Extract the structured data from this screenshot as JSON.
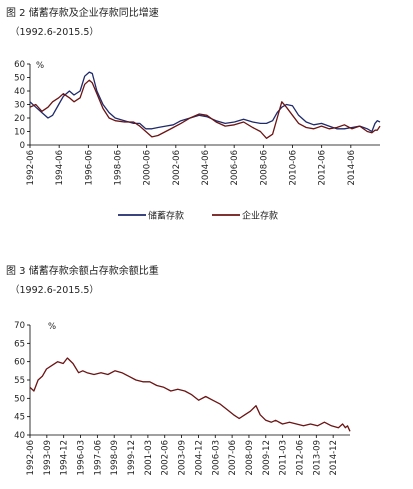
{
  "figure2": {
    "caption": "图 2 储蓄存款及企业存款同比增速",
    "subcaption": "（1992.6-2015.5）",
    "chart_data": {
      "type": "line",
      "ylabel": "%",
      "ylim": [
        0,
        60
      ],
      "yticks": [
        0,
        10,
        20,
        30,
        40,
        50,
        60
      ],
      "x_range": [
        1992.42,
        2015.33
      ],
      "xtick_labels": [
        "1992-06",
        "1994-06",
        "1996-06",
        "1998-06",
        "2000-06",
        "2002-06",
        "2004-06",
        "2006-06",
        "2008-06",
        "2010-06",
        "2012-06",
        "2014-06"
      ],
      "legend_position": "bottom",
      "series": [
        {
          "name": "储蓄存款",
          "color": "#1f2a6b",
          "x": [
            1992.42,
            1992.8,
            1993.2,
            1993.6,
            1993.9,
            1994.3,
            1994.6,
            1995.0,
            1995.3,
            1995.7,
            1996.0,
            1996.3,
            1996.5,
            1996.8,
            1997.2,
            1997.6,
            1998.0,
            1998.6,
            1999.2,
            1999.6,
            2000.0,
            2000.4,
            2000.8,
            2001.3,
            2001.8,
            2002.3,
            2002.9,
            2003.5,
            2004.0,
            2004.6,
            2005.2,
            2005.8,
            2006.4,
            2007.0,
            2007.5,
            2007.9,
            2008.3,
            2008.6,
            2008.9,
            2009.2,
            2009.6,
            2010.0,
            2010.5,
            2011.0,
            2011.5,
            2012.0,
            2012.5,
            2013.0,
            2013.5,
            2014.0,
            2014.5,
            2014.8,
            2015.0,
            2015.15,
            2015.33
          ],
          "y": [
            32,
            28,
            24,
            20,
            22,
            30,
            36,
            40,
            37,
            40,
            51,
            54,
            53,
            40,
            30,
            24,
            20,
            18,
            16,
            16,
            12,
            12,
            13,
            14,
            15,
            18,
            20,
            22,
            21,
            18,
            16,
            17,
            19,
            17,
            16,
            16,
            18,
            24,
            28,
            30,
            29,
            22,
            17,
            15,
            16,
            14,
            12,
            12,
            13,
            14,
            12,
            10,
            16,
            18,
            17
          ]
        },
        {
          "name": "企业存款",
          "color": "#6b1414",
          "x": [
            1992.42,
            1992.8,
            1993.2,
            1993.6,
            1993.9,
            1994.3,
            1994.6,
            1995.0,
            1995.3,
            1995.7,
            1996.0,
            1996.3,
            1996.5,
            1996.8,
            1997.2,
            1997.6,
            1998.0,
            1998.6,
            1999.2,
            1999.6,
            2000.0,
            2000.4,
            2000.8,
            2001.3,
            2001.8,
            2002.3,
            2002.9,
            2003.5,
            2004.0,
            2004.6,
            2005.2,
            2005.8,
            2006.4,
            2007.0,
            2007.5,
            2007.9,
            2008.3,
            2008.6,
            2008.9,
            2009.2,
            2009.6,
            2010.0,
            2010.5,
            2011.0,
            2011.5,
            2012.0,
            2012.5,
            2013.0,
            2013.5,
            2014.0,
            2014.5,
            2014.8,
            2015.0,
            2015.15,
            2015.33
          ],
          "y": [
            28,
            30,
            25,
            28,
            32,
            35,
            38,
            35,
            32,
            35,
            45,
            48,
            46,
            38,
            27,
            20,
            18,
            17,
            17,
            14,
            10,
            6,
            7,
            10,
            13,
            16,
            20,
            23,
            22,
            17,
            14,
            15,
            17,
            13,
            10,
            5,
            8,
            20,
            32,
            28,
            22,
            16,
            13,
            12,
            14,
            12,
            13,
            15,
            12,
            14,
            10,
            9,
            11,
            11,
            14
          ]
        }
      ]
    }
  },
  "figure3": {
    "caption": "图 3 储蓄存款余额占存款余额比重",
    "subcaption": "（1992.6-2015.5）",
    "chart_data": {
      "type": "line",
      "ylabel": "%",
      "ylim": [
        40,
        70
      ],
      "yticks": [
        40,
        45,
        50,
        55,
        60,
        65,
        70
      ],
      "x_range": [
        1992.42,
        2015.33
      ],
      "xtick_labels": [
        "1992-06",
        "1993-09",
        "1994-12",
        "1996-03",
        "1997-06",
        "1998-09",
        "1999-12",
        "2001-03",
        "2002-06",
        "2003-09",
        "2004-12",
        "2006-03",
        "2007-06",
        "2008-09",
        "2009-12",
        "2011-03",
        "2012-06",
        "2013-09",
        "2014-12"
      ],
      "series": [
        {
          "name": "",
          "color": "#6b1414",
          "x": [
            1992.42,
            1992.7,
            1993.0,
            1993.3,
            1993.6,
            1994.0,
            1994.4,
            1994.8,
            1995.1,
            1995.5,
            1995.9,
            1996.2,
            1996.5,
            1997.0,
            1997.5,
            1998.0,
            1998.5,
            1999.0,
            1999.5,
            2000.0,
            2000.5,
            2001.0,
            2001.5,
            2002.0,
            2002.5,
            2003.0,
            2003.5,
            2004.0,
            2004.5,
            2005.0,
            2005.5,
            2006.0,
            2006.5,
            2007.0,
            2007.4,
            2007.8,
            2008.2,
            2008.6,
            2008.9,
            2009.3,
            2009.7,
            2010.0,
            2010.5,
            2011.0,
            2011.5,
            2012.0,
            2012.5,
            2013.0,
            2013.5,
            2014.0,
            2014.5,
            2014.8,
            2015.0,
            2015.15,
            2015.33
          ],
          "y": [
            53,
            52,
            55,
            56,
            58,
            59,
            60,
            59.5,
            61,
            59.5,
            57,
            57.5,
            57,
            56.5,
            57,
            56.5,
            57.5,
            57,
            56,
            55,
            54.5,
            54.5,
            53.5,
            53,
            52,
            52.5,
            52,
            51,
            49.5,
            50.5,
            49.5,
            48.5,
            47,
            45.5,
            44.5,
            45.5,
            46.5,
            48,
            45.5,
            44,
            43.5,
            44,
            43,
            43.5,
            43,
            42.5,
            43,
            42.5,
            43.5,
            42.5,
            42,
            43,
            42,
            42.5,
            41
          ]
        }
      ]
    }
  }
}
